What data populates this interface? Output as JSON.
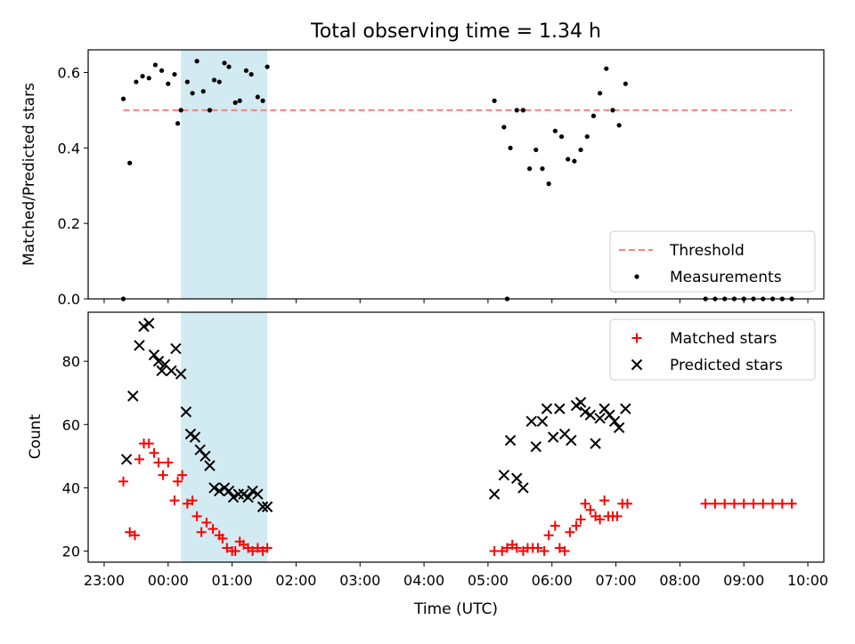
{
  "figure": {
    "title": "Total observing time = 1.34 h",
    "xlabel": "Time (UTC)"
  },
  "colors": {
    "highlight": "#add8e6",
    "threshold": "#ff7f7f",
    "measurements": "#000000",
    "matched": "#ff0000",
    "predicted": "#000000"
  },
  "chart_data": [
    {
      "type": "scatter",
      "panel": "top",
      "ylabel": "Matched/Predicted stars",
      "xlim_hours": [
        -1.25,
        10.25
      ],
      "ylim": [
        0.0,
        0.66
      ],
      "yticks": [
        0.0,
        0.2,
        0.4,
        0.6
      ],
      "ytick_labels": [
        "0.0",
        "0.2",
        "0.4",
        "0.6"
      ],
      "highlight_span_hours": [
        0.2,
        1.55
      ],
      "threshold": {
        "label": "Threshold",
        "y": 0.5,
        "x_range_hours": [
          -0.7,
          9.75
        ],
        "style": "dashed"
      },
      "legend": {
        "placement": "lower right",
        "entries": [
          "Threshold",
          "Measurements"
        ]
      },
      "series": [
        {
          "name": "Measurements",
          "marker": "dot",
          "x_hours": [
            -0.7,
            -0.6,
            -0.5,
            -0.4,
            -0.3,
            -0.2,
            -0.1,
            0.0,
            0.1,
            0.15,
            0.2,
            0.3,
            0.38,
            0.45,
            0.55,
            0.65,
            0.72,
            0.8,
            0.88,
            0.95,
            1.05,
            1.12,
            1.22,
            1.3,
            1.4,
            1.48,
            1.55,
            5.1,
            5.25,
            5.35,
            5.45,
            5.55,
            5.65,
            5.75,
            5.85,
            5.95,
            6.05,
            6.15,
            6.25,
            6.35,
            6.45,
            6.55,
            6.65,
            6.75,
            6.85,
            6.95,
            7.05,
            7.15
          ],
          "y": [
            0.53,
            0.36,
            0.575,
            0.59,
            0.585,
            0.62,
            0.605,
            0.57,
            0.595,
            0.465,
            0.5,
            0.575,
            0.545,
            0.63,
            0.55,
            0.5,
            0.58,
            0.575,
            0.625,
            0.615,
            0.52,
            0.525,
            0.605,
            0.595,
            0.535,
            0.525,
            0.615,
            0.525,
            0.455,
            0.4,
            0.5,
            0.5,
            0.345,
            0.395,
            0.345,
            0.305,
            0.445,
            0.43,
            0.37,
            0.365,
            0.395,
            0.43,
            0.485,
            0.545,
            0.61,
            0.5,
            0.46,
            0.57
          ]
        },
        {
          "name": "Measurements (zero values)",
          "marker": "dot",
          "x_hours": [
            -0.7,
            5.3,
            8.4,
            8.55,
            8.7,
            8.85,
            9.0,
            9.15,
            9.3,
            9.45,
            9.6,
            9.75
          ],
          "y": [
            0,
            0,
            0,
            0,
            0,
            0,
            0,
            0,
            0,
            0,
            0,
            0
          ]
        }
      ]
    },
    {
      "type": "scatter",
      "panel": "bottom",
      "ylabel": "Count",
      "xlim_hours": [
        -1.25,
        10.25
      ],
      "ylim": [
        16.5,
        95.5
      ],
      "yticks": [
        20,
        40,
        60,
        80
      ],
      "ytick_labels": [
        "20",
        "40",
        "60",
        "80"
      ],
      "xticks_hours": [
        -1,
        0,
        1,
        2,
        3,
        4,
        5,
        6,
        7,
        8,
        9,
        10
      ],
      "xtick_labels": [
        "23:00",
        "00:00",
        "01:00",
        "02:00",
        "03:00",
        "04:00",
        "05:00",
        "06:00",
        "07:00",
        "08:00",
        "09:00",
        "10:00"
      ],
      "highlight_span_hours": [
        0.2,
        1.55
      ],
      "legend": {
        "placement": "upper right",
        "entries": [
          "Matched stars",
          "Predicted stars"
        ]
      },
      "series": [
        {
          "name": "Matched stars",
          "marker": "plus",
          "x_hours": [
            -0.7,
            -0.6,
            -0.52,
            -0.45,
            -0.38,
            -0.3,
            -0.22,
            -0.15,
            -0.08,
            0.0,
            0.1,
            0.15,
            0.22,
            0.3,
            0.38,
            0.45,
            0.52,
            0.6,
            0.7,
            0.8,
            0.85,
            0.92,
            1.0,
            1.05,
            1.12,
            1.18,
            1.25,
            1.32,
            1.4,
            1.48,
            1.55,
            5.1,
            5.22,
            5.3,
            5.38,
            5.45,
            5.55,
            5.62,
            5.7,
            5.78,
            5.88,
            5.95,
            6.05,
            6.12,
            6.2,
            6.28,
            6.38,
            6.45,
            6.52,
            6.6,
            6.68,
            6.75,
            6.82,
            6.88,
            6.95,
            7.02,
            7.1,
            7.18,
            8.4,
            8.55,
            8.7,
            8.85,
            9.0,
            9.15,
            9.3,
            9.45,
            9.6,
            9.75
          ],
          "y": [
            42,
            26,
            25,
            49,
            54,
            54,
            51,
            48,
            44,
            48,
            36,
            42,
            44,
            35,
            36,
            31,
            26,
            29,
            27,
            25,
            24,
            21,
            20,
            20,
            23,
            22,
            21,
            20,
            21,
            20,
            21,
            20,
            20,
            21,
            22,
            21,
            20,
            21,
            21,
            21,
            20,
            25,
            28,
            21,
            20,
            26,
            28,
            30,
            35,
            33,
            31,
            30,
            36,
            31,
            31,
            31,
            35,
            35,
            35,
            35,
            35,
            35,
            35,
            35,
            35,
            35,
            35,
            35
          ]
        },
        {
          "name": "Predicted stars",
          "marker": "x",
          "x_hours": [
            -0.65,
            -0.55,
            -0.45,
            -0.38,
            -0.3,
            -0.22,
            -0.15,
            -0.1,
            -0.05,
            0.05,
            0.12,
            0.2,
            0.28,
            0.35,
            0.42,
            0.5,
            0.58,
            0.65,
            0.72,
            0.8,
            0.88,
            0.95,
            1.02,
            1.1,
            1.18,
            1.25,
            1.32,
            1.4,
            1.48,
            1.55,
            5.1,
            5.25,
            5.35,
            5.45,
            5.55,
            5.68,
            5.75,
            5.85,
            5.92,
            6.02,
            6.12,
            6.2,
            6.3,
            6.38,
            6.45,
            6.52,
            6.6,
            6.68,
            6.75,
            6.82,
            6.9,
            6.98,
            7.05,
            7.15
          ],
          "y": [
            49,
            69,
            85,
            91,
            92,
            82,
            80,
            77,
            79,
            77,
            84,
            76,
            64,
            57,
            56,
            52,
            50,
            47,
            40,
            39,
            40,
            39,
            37,
            38,
            38,
            37,
            39,
            38,
            34,
            34,
            38,
            44,
            55,
            43,
            40,
            61,
            53,
            61,
            65,
            56,
            65,
            57,
            55,
            66,
            67,
            64,
            63,
            54,
            62,
            65,
            63,
            61,
            59,
            65
          ]
        }
      ]
    }
  ]
}
